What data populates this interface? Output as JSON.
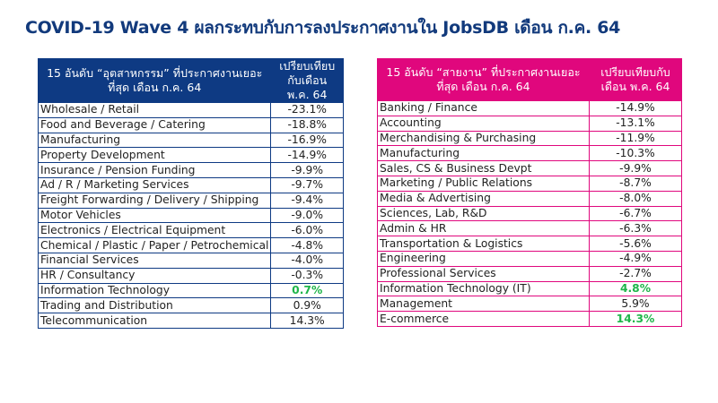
{
  "title": "COVID-19 Wave 4 ผลกระทบกับการลงประกาศงานใน JobsDB เดือน ก.ค. 64",
  "colors": {
    "title": "#123a7c",
    "industry_header": "#0e3a83",
    "jobfunction_header": "#e0077d",
    "positive_highlight": "#1fb54a"
  },
  "industry_table": {
    "header_name": "15 อันดับ “อุตสาหกรรม” ที่ประกาศงานเยอะที่สุด เดือน ก.ค. 64",
    "header_value": "เปรียบเทียบกับเดือน พ.ค. 64",
    "rows": [
      {
        "name": "Wholesale / Retail",
        "value": "-23.1%"
      },
      {
        "name": "Food and Beverage / Catering",
        "value": "-18.8%"
      },
      {
        "name": "Manufacturing",
        "value": "-16.9%"
      },
      {
        "name": "Property Development",
        "value": "-14.9%"
      },
      {
        "name": "Insurance / Pension Funding",
        "value": "-9.9%"
      },
      {
        "name": "Ad / R / Marketing Services",
        "value": "-9.7%"
      },
      {
        "name": "Freight Forwarding / Delivery / Shipping",
        "value": "-9.4%"
      },
      {
        "name": "Motor Vehicles",
        "value": "-9.0%"
      },
      {
        "name": "Electronics / Electrical Equipment",
        "value": "-6.0%"
      },
      {
        "name": "Chemical / Plastic / Paper / Petrochemical",
        "value": "-4.8%"
      },
      {
        "name": "Financial Services",
        "value": "-4.0%"
      },
      {
        "name": "HR / Consultancy",
        "value": "-0.3%"
      },
      {
        "name": "Information Technology",
        "value": "0.7%",
        "highlight": true
      },
      {
        "name": "Trading and Distribution",
        "value": "0.9%"
      },
      {
        "name": "Telecommunication",
        "value": "14.3%"
      }
    ]
  },
  "jobfunction_table": {
    "header_name": "15 อันดับ “สายงาน” ที่ประกาศงานเยอะที่สุด เดือน ก.ค. 64",
    "header_value": "เปรียบเทียบกับเดือน พ.ค. 64",
    "rows": [
      {
        "name": "Banking / Finance",
        "value": "-14.9%"
      },
      {
        "name": "Accounting",
        "value": "-13.1%"
      },
      {
        "name": "Merchandising & Purchasing",
        "value": "-11.9%"
      },
      {
        "name": "Manufacturing",
        "value": "-10.3%"
      },
      {
        "name": "Sales, CS & Business Devpt",
        "value": "-9.9%"
      },
      {
        "name": "Marketing / Public Relations",
        "value": "-8.7%"
      },
      {
        "name": "Media & Advertising",
        "value": "-8.0%"
      },
      {
        "name": "Sciences, Lab, R&D",
        "value": "-6.7%"
      },
      {
        "name": "Admin & HR",
        "value": "-6.3%"
      },
      {
        "name": "Transportation & Logistics",
        "value": "-5.6%"
      },
      {
        "name": "Engineering",
        "value": "-4.9%"
      },
      {
        "name": "Professional Services",
        "value": "-2.7%"
      },
      {
        "name": "Information Technology (IT)",
        "value": "4.8%",
        "highlight": true
      },
      {
        "name": "Management",
        "value": "5.9%"
      },
      {
        "name": "E-commerce",
        "value": "14.3%",
        "highlight": true
      }
    ]
  }
}
